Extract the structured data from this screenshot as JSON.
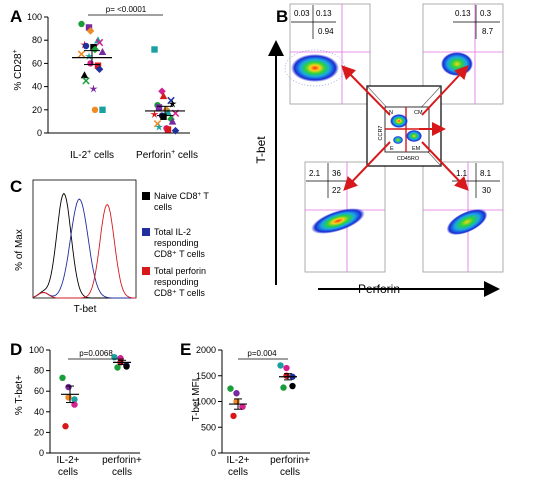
{
  "panel_labels": {
    "A": "A",
    "B": "B",
    "C": "C",
    "D": "D",
    "E": "E"
  },
  "colors": {
    "red": "#d7191c",
    "blue": "#1f2f9e",
    "black": "#000000",
    "gate": "#e070e0",
    "green": "#1a9e3a",
    "purple": "#7a2aa0",
    "orange": "#f08a24",
    "teal": "#1aa0a0",
    "magenta": "#d4218e"
  },
  "chart_data": [
    {
      "panel": "A",
      "type": "scatter",
      "ylabel_main": "% CD28",
      "ylabel_sup": "+",
      "ylim": [
        0,
        100
      ],
      "yticks": [
        "0",
        "20",
        "40",
        "60",
        "80",
        "100"
      ],
      "categories": [
        {
          "main": "IL-2",
          "sup": "+",
          "rest": " cells"
        },
        {
          "main": "Perforin",
          "sup": "+",
          "rest": " cells"
        }
      ],
      "pvalue": "p= <0.0001",
      "series": [
        {
          "category": 0,
          "mean": 65,
          "sem": 6,
          "values": [
            94,
            91,
            88,
            80,
            78,
            76,
            75,
            74,
            72,
            70,
            68,
            66,
            60,
            58,
            55,
            50,
            45,
            38,
            20,
            20
          ]
        },
        {
          "category": 1,
          "mean": 19,
          "sem": 4,
          "values": [
            72,
            36,
            32,
            28,
            25,
            24,
            22,
            20,
            18,
            17,
            16,
            15,
            14,
            12,
            10,
            8,
            5,
            4,
            3,
            2
          ]
        }
      ]
    },
    {
      "panel": "D",
      "type": "scatter",
      "ylabel": "% T-bet+",
      "ylim": [
        0,
        100
      ],
      "yticks": [
        "0",
        "20",
        "40",
        "60",
        "80",
        "100"
      ],
      "categories": [
        [
          "IL-2+",
          "cells"
        ],
        [
          "perforin+",
          "cells"
        ]
      ],
      "pvalue": "p=0.0068",
      "series": [
        {
          "category": 0,
          "mean": 57,
          "sem": 8,
          "values": [
            73,
            64,
            54,
            52,
            47,
            26
          ]
        },
        {
          "category": 1,
          "mean": 88,
          "sem": 2,
          "values": [
            93,
            92,
            88,
            85,
            84,
            83
          ]
        }
      ]
    },
    {
      "panel": "E",
      "type": "scatter",
      "ylabel": "T-bet MFI",
      "ylim": [
        0,
        2000
      ],
      "yticks": [
        "0",
        "500",
        "1000",
        "1500",
        "2000"
      ],
      "categories": [
        [
          "IL-2+",
          "cells"
        ],
        [
          "perforin+",
          "cells"
        ]
      ],
      "pvalue": "p=0.004",
      "series": [
        {
          "category": 0,
          "mean": 950,
          "sem": 100,
          "values": [
            1250,
            1160,
            1000,
            900,
            900,
            720
          ]
        },
        {
          "category": 1,
          "mean": 1480,
          "sem": 60,
          "values": [
            1700,
            1650,
            1500,
            1480,
            1300,
            1270
          ]
        }
      ]
    },
    {
      "panel": "C",
      "type": "line",
      "xlabel": "T-bet",
      "ylabel": "% of Max",
      "series": [
        {
          "name": "Naive CD8⁺ T cells",
          "peak": 0.3
        },
        {
          "name": "Total IL-2 responding CD8⁺ T cells",
          "peak": 0.45
        },
        {
          "name": "Total perforin responding CD8⁺ T cells",
          "peak": 0.72
        }
      ]
    }
  ],
  "panel_c_legend": [
    {
      "line1_a": "Naive CD8",
      "line1_sup": "+",
      "line1_b": " T",
      "line2": "cells"
    },
    {
      "line1_a": "Total IL-2",
      "line1_sup": "",
      "line1_b": "",
      "line2": "responding",
      "line3": "CD8⁺ T cells"
    },
    {
      "line1_a": "Total perforin",
      "line1_sup": "",
      "line1_b": "",
      "line2": "responding",
      "line3": "CD8⁺ T cells"
    }
  ],
  "panel_b": {
    "ylabel": "T-bet",
    "xlabel": "Perforin",
    "center": {
      "y_axis": "CCR7",
      "x_axis": "CD45RO",
      "labels": [
        "N",
        "CM",
        "E",
        "EM"
      ]
    },
    "quadrants": {
      "top_left": [
        "0.03",
        "0.13",
        "0.94"
      ],
      "top_right": [
        "0.13",
        "0.3",
        "8.7"
      ],
      "bottom_left": [
        "2.1",
        "36",
        "22"
      ],
      "bottom_right": [
        "1.1",
        "8.1",
        "30"
      ]
    }
  }
}
